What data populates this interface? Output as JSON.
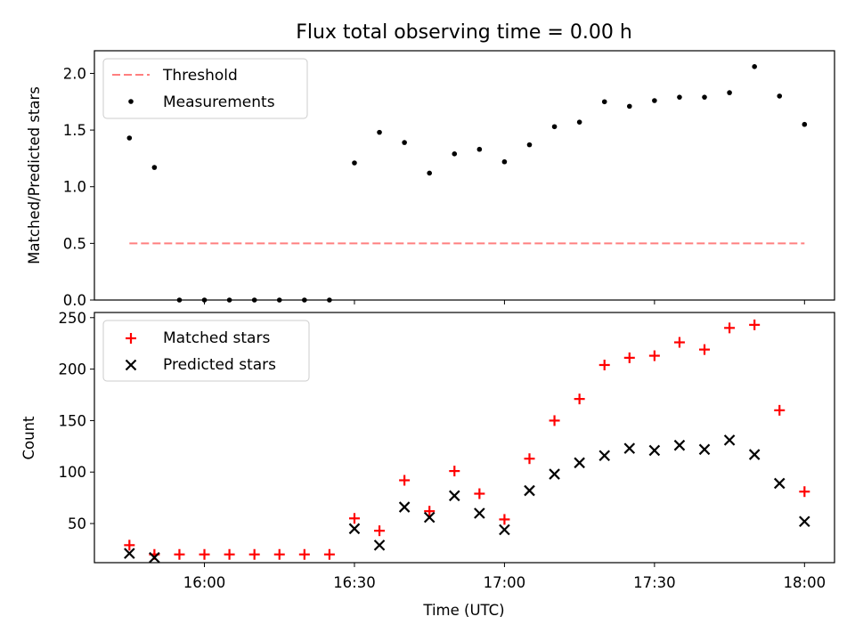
{
  "chart_data": [
    {
      "type": "scatter",
      "title": "Flux total observing time = 0.00 h",
      "xlabel": "",
      "ylabel": "Matched/Predicted stars",
      "ylim": [
        0,
        2.2
      ],
      "yticks": [
        0.0,
        0.5,
        1.0,
        1.5,
        2.0
      ],
      "ytick_labels": [
        "0.0",
        "0.5",
        "1.0",
        "1.5",
        "2.0"
      ],
      "legend_position": "top-left",
      "threshold": {
        "name": "Threshold",
        "value": 0.5,
        "x_start": "15:45",
        "x_end": "18:00",
        "color": "#ff7f7f",
        "style": "dashed"
      },
      "series": [
        {
          "name": "Measurements",
          "marker": "dot",
          "color": "#000000",
          "x": [
            "15:45",
            "15:50",
            "15:55",
            "16:00",
            "16:05",
            "16:10",
            "16:15",
            "16:20",
            "16:25",
            "16:30",
            "16:35",
            "16:40",
            "16:45",
            "16:50",
            "16:55",
            "17:00",
            "17:05",
            "17:10",
            "17:15",
            "17:20",
            "17:25",
            "17:30",
            "17:35",
            "17:40",
            "17:45",
            "17:50",
            "17:55",
            "18:00"
          ],
          "y": [
            1.43,
            1.17,
            0,
            0,
            0,
            0,
            0,
            0,
            0,
            1.21,
            1.48,
            1.39,
            1.12,
            1.29,
            1.33,
            1.22,
            1.37,
            1.53,
            1.57,
            1.75,
            1.71,
            1.76,
            1.79,
            1.79,
            1.83,
            2.06,
            1.8,
            1.55
          ]
        }
      ]
    },
    {
      "type": "scatter",
      "title": "",
      "xlabel": "Time (UTC)",
      "ylabel": "Count",
      "xlim": [
        "15:38",
        "18:06"
      ],
      "ylim": [
        12,
        255
      ],
      "xticks": [
        "16:00",
        "16:30",
        "17:00",
        "17:30",
        "18:00"
      ],
      "yticks": [
        50,
        100,
        150,
        200,
        250
      ],
      "ytick_labels": [
        "50",
        "100",
        "150",
        "200",
        "250"
      ],
      "legend_position": "top-left",
      "x": [
        "15:45",
        "15:50",
        "15:55",
        "16:00",
        "16:05",
        "16:10",
        "16:15",
        "16:20",
        "16:25",
        "16:30",
        "16:35",
        "16:40",
        "16:45",
        "16:50",
        "16:55",
        "17:00",
        "17:05",
        "17:10",
        "17:15",
        "17:20",
        "17:25",
        "17:30",
        "17:35",
        "17:40",
        "17:45",
        "17:50",
        "17:55",
        "18:00"
      ],
      "series": [
        {
          "name": "Matched stars",
          "marker": "plus",
          "color": "#ff0000",
          "values": [
            29,
            20,
            20,
            20,
            20,
            20,
            20,
            20,
            20,
            55,
            43,
            92,
            62,
            101,
            79,
            54,
            113,
            150,
            171,
            204,
            211,
            213,
            226,
            219,
            240,
            243,
            160,
            81
          ]
        },
        {
          "name": "Predicted stars",
          "marker": "x",
          "color": "#000000",
          "values": [
            21,
            17,
            null,
            null,
            null,
            null,
            null,
            null,
            null,
            45,
            29,
            66,
            56,
            77,
            60,
            44,
            82,
            98,
            109,
            116,
            123,
            121,
            126,
            122,
            131,
            117,
            89,
            52
          ]
        }
      ]
    }
  ]
}
